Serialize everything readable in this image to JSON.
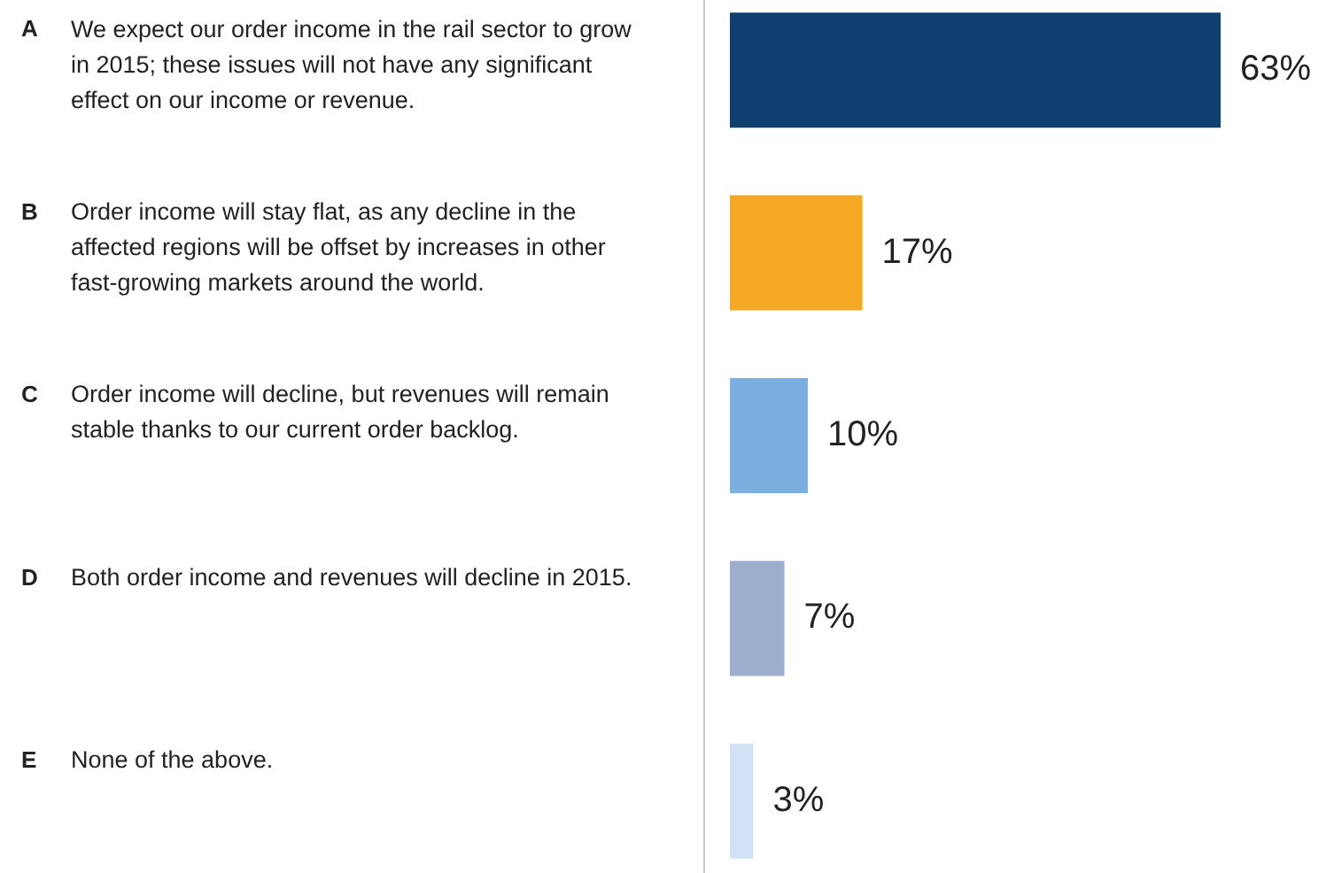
{
  "chart_data": {
    "type": "bar",
    "orientation": "horizontal",
    "categories": [
      "A We expect our order income in the rail sector to grow in 2015; these issues will not have any significant effect on our income or revenue.",
      "B Order income will stay flat, as any decline in the affected regions will be offset by increases in other fast-growing markets around the world.",
      "C Order income will decline, but revenues will remain stable thanks to our current order backlog.",
      "D Both order income and revenues will decline in 2015.",
      "E None of the above."
    ],
    "values": [
      63,
      17,
      10,
      7,
      3
    ],
    "colors": [
      "#0f3f6e",
      "#f4a823",
      "#7aafdf",
      "#9dadcc",
      "#d0e2f3"
    ],
    "data_labels": true,
    "value_labels": [
      "63%",
      "17%",
      "10%",
      "7%",
      "3%"
    ],
    "legend": false
  }
}
